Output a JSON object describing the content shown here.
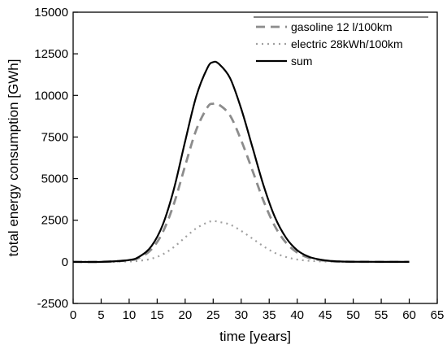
{
  "chart_data": {
    "type": "line",
    "title": "",
    "xlabel": "time   [years]",
    "ylabel": "total energy consumption   [GWh]",
    "xlim": [
      0,
      65
    ],
    "ylim": [
      -2500,
      15000
    ],
    "x_ticks": [
      0,
      5,
      10,
      15,
      20,
      25,
      30,
      35,
      40,
      45,
      50,
      55,
      60,
      65
    ],
    "y_ticks": [
      -2500,
      0,
      2500,
      5000,
      7500,
      10000,
      12500,
      15000
    ],
    "grid": false,
    "legend_position": "top-right",
    "series": [
      {
        "name": "gasoline 12 l/100km",
        "style": "dashed",
        "color": "#8c8c8c",
        "x": [
          0,
          5,
          10,
          12,
          14,
          16,
          18,
          20,
          22,
          24,
          25,
          26,
          28,
          30,
          32,
          34,
          36,
          38,
          40,
          42,
          44,
          46,
          48,
          50,
          55,
          60
        ],
        "y": [
          0,
          0,
          90,
          280,
          760,
          1780,
          3500,
          5780,
          7950,
          9300,
          9500,
          9450,
          8800,
          7300,
          5500,
          3650,
          2150,
          1150,
          560,
          250,
          110,
          40,
          15,
          5,
          0,
          0
        ]
      },
      {
        "name": "electric 28kWh/100km",
        "style": "dotted",
        "color": "#a0a0a0",
        "x": [
          0,
          5,
          10,
          12,
          14,
          16,
          18,
          20,
          22,
          24,
          25,
          26,
          28,
          30,
          32,
          34,
          36,
          38,
          40,
          42,
          44,
          46,
          48,
          50,
          55,
          60
        ],
        "y": [
          0,
          0,
          20,
          70,
          190,
          450,
          890,
          1470,
          2020,
          2370,
          2450,
          2400,
          2240,
          1860,
          1400,
          930,
          540,
          290,
          140,
          65,
          28,
          10,
          4,
          1,
          0,
          0
        ]
      },
      {
        "name": "sum",
        "style": "solid",
        "color": "#000000",
        "x": [
          0,
          5,
          10,
          12,
          14,
          16,
          18,
          20,
          22,
          24,
          25,
          26,
          28,
          30,
          32,
          34,
          36,
          38,
          40,
          42,
          44,
          46,
          48,
          50,
          55,
          60
        ],
        "y": [
          0,
          0,
          110,
          350,
          950,
          2230,
          4390,
          7250,
          9970,
          11670,
          12000,
          11900,
          11050,
          9200,
          6900,
          4580,
          2700,
          1450,
          700,
          315,
          140,
          50,
          19,
          6,
          0,
          0
        ]
      }
    ]
  }
}
